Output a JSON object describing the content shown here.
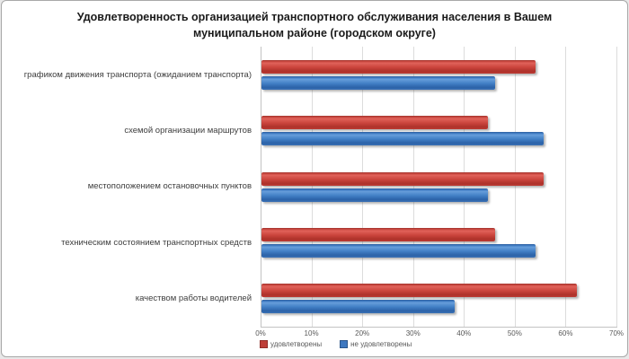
{
  "title": "Удовлетворенность организацией транспортного обслуживания населения в Вашем муниципальном районе (городском округе)",
  "colors": {
    "satisfied_red": "#c0413b",
    "unsatisfied_blue": "#3e78c0",
    "gridline": "#dcdcdc",
    "axis_line": "#c3c3c3",
    "tick_text": "#595959",
    "title_text": "#1a1a1a"
  },
  "chart_data": {
    "type": "bar",
    "orientation": "horizontal",
    "title": "Удовлетворенность организацией транспортного обслуживания населения в Вашем муниципальном районе (городском округе)",
    "categories": [
      "графиком движения транспорта (ожиданием транспорта)",
      "схемой организации маршрутов",
      "местоположением остановочных пунктов",
      "техническим состоянием транспортных средств",
      "качеством работы водителей"
    ],
    "series": [
      {
        "name": "удовлетворены",
        "color": "#c0413b",
        "values": [
          54,
          44.5,
          55.5,
          46,
          62
        ]
      },
      {
        "name": "не удовлетворены",
        "color": "#3e78c0",
        "values": [
          46,
          55.5,
          44.5,
          54,
          38
        ]
      }
    ],
    "x_ticks": [
      "0%",
      "10%",
      "20%",
      "30%",
      "40%",
      "50%",
      "60%",
      "70%"
    ],
    "xlim": [
      0,
      70
    ],
    "xlabel": "",
    "ylabel": "",
    "grid": true,
    "legend_position": "bottom-left"
  }
}
